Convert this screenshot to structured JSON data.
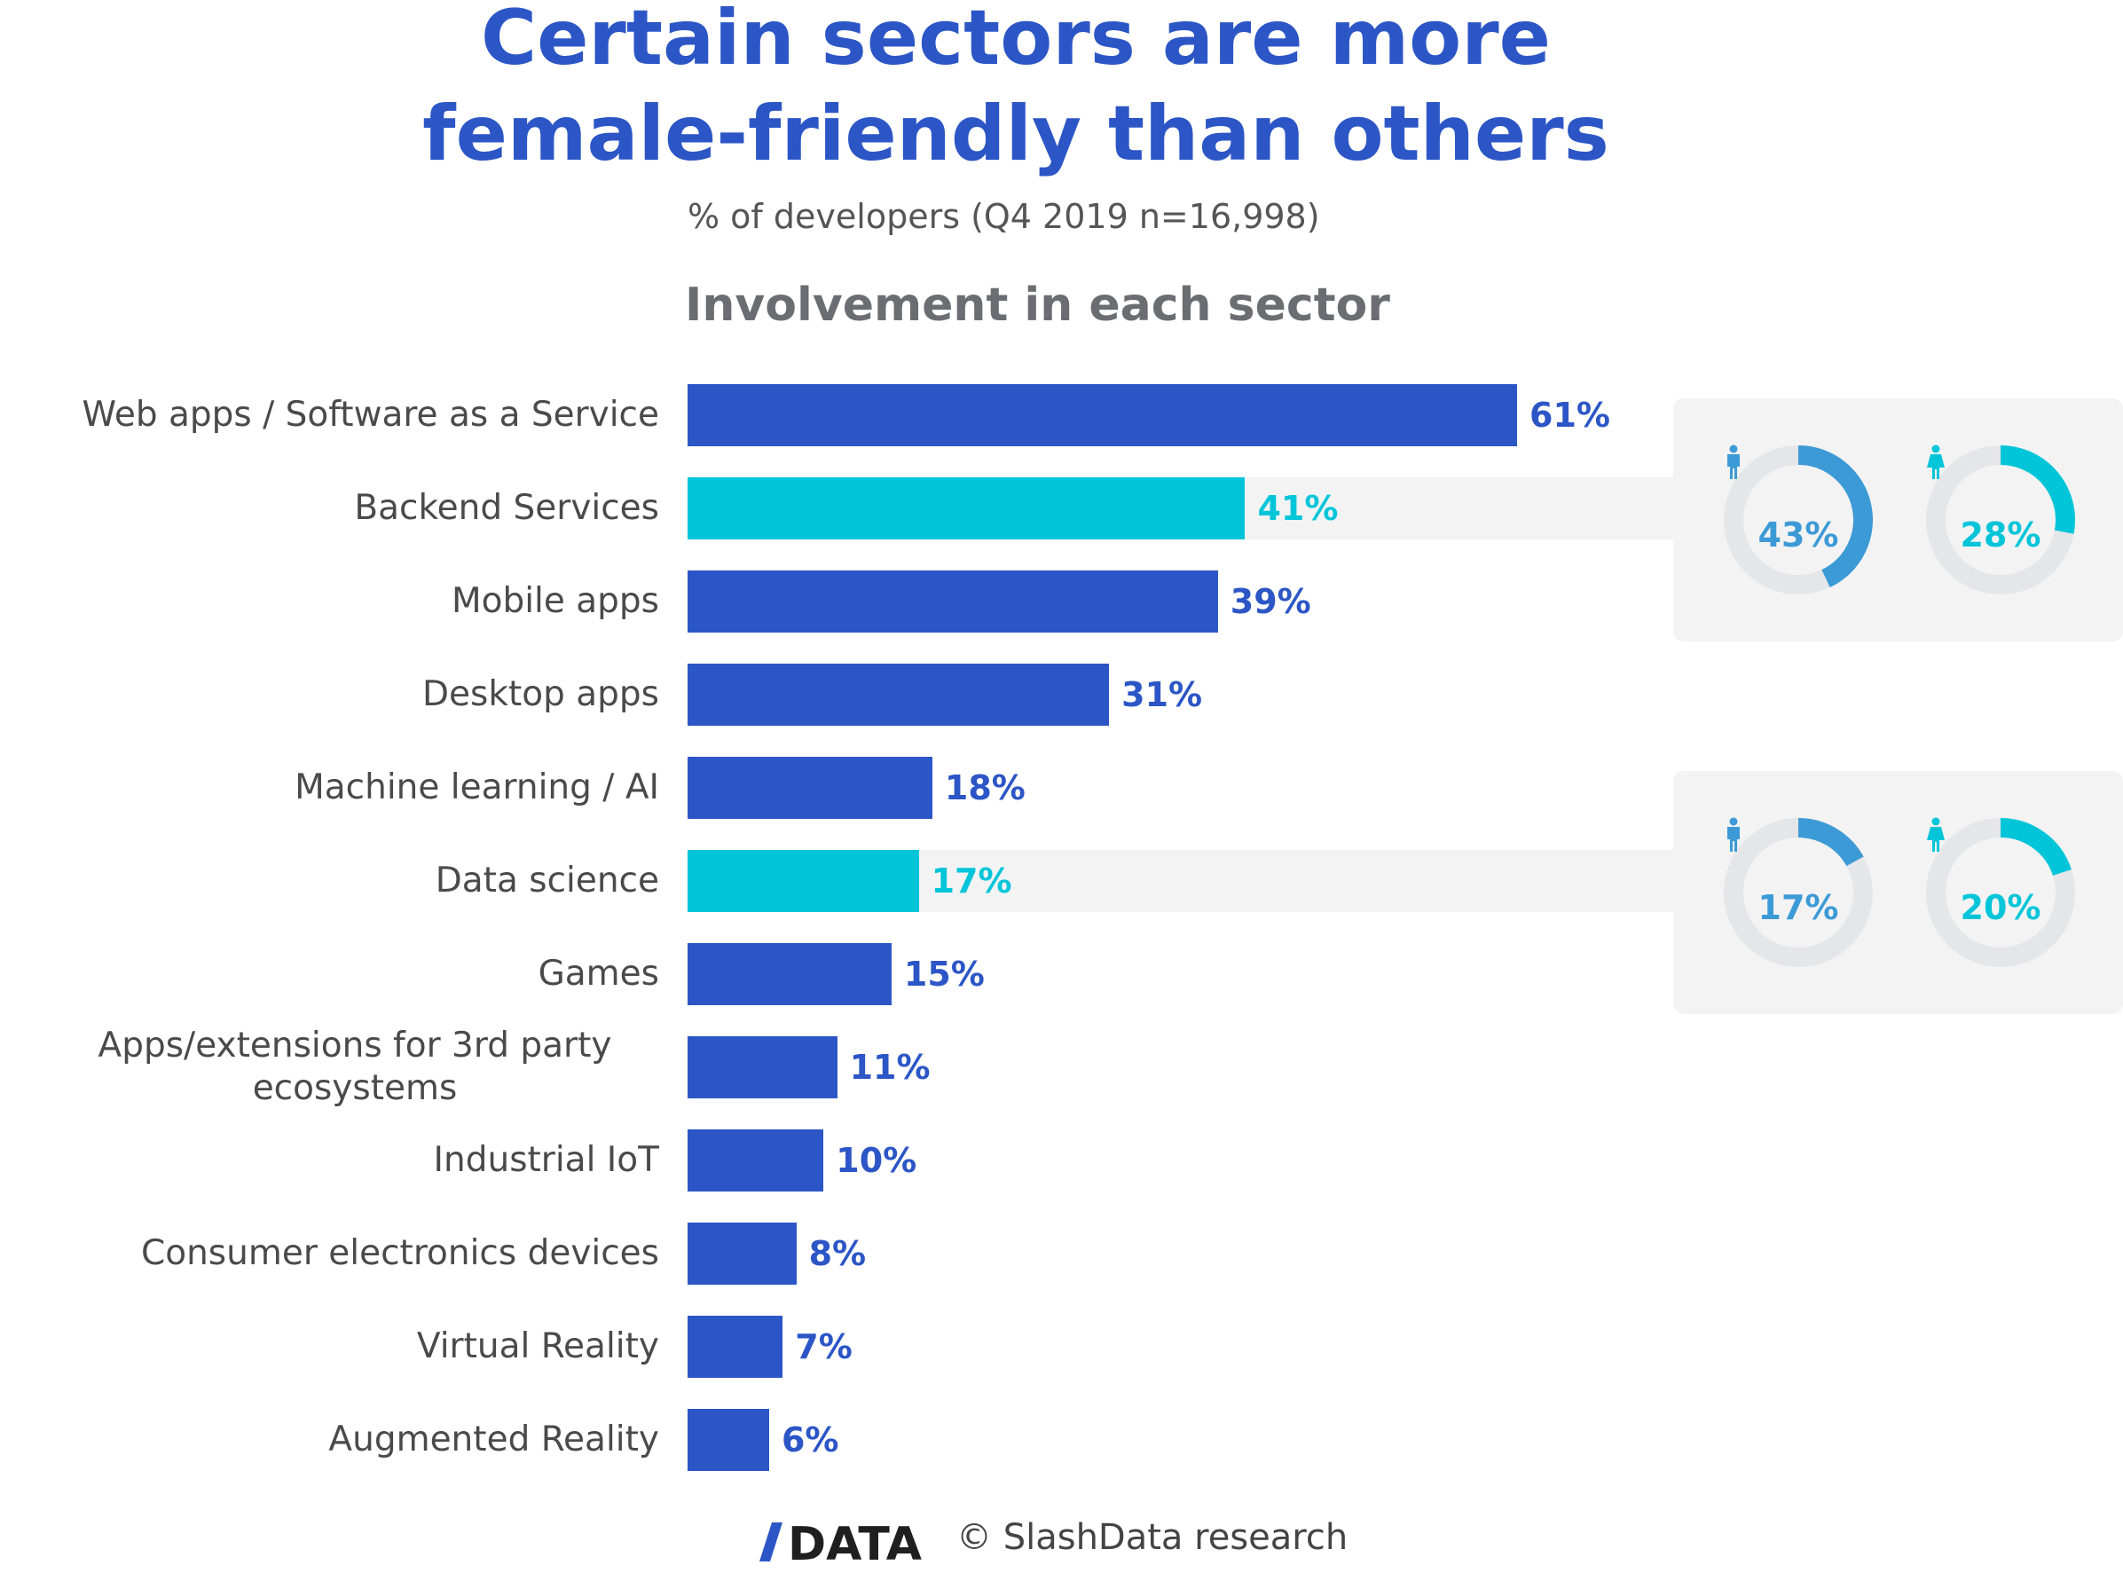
{
  "header": {
    "title_line1": "Certain sectors are more",
    "title_line2": "female-friendly than others",
    "subtitle": "% of developers (Q4 2019 n=16,998)",
    "section_title": "Involvement in each sector"
  },
  "colors": {
    "primary": "#2c56c6",
    "highlight": "#00c5d9",
    "male": "#3c9ad6",
    "female": "#00c5d9",
    "track": "#e4e6ea"
  },
  "chart_data": {
    "type": "bar",
    "orientation": "horizontal",
    "title": "Involvement in each sector",
    "categories": [
      "Web apps / Software as a Service",
      "Backend Services",
      "Mobile apps",
      "Desktop apps",
      "Machine learning / AI",
      "Data science",
      "Games",
      "Apps/extensions for 3rd party ecosystems",
      "Industrial IoT",
      "Consumer electronics devices",
      "Virtual Reality",
      "Augmented Reality"
    ],
    "values": [
      61,
      41,
      39,
      31,
      18,
      17,
      15,
      11,
      10,
      8,
      7,
      6
    ],
    "value_labels": [
      "61%",
      "41%",
      "39%",
      "31%",
      "18%",
      "17%",
      "15%",
      "11%",
      "10%",
      "8%",
      "7%",
      "6%"
    ],
    "highlighted": [
      "Backend Services",
      "Data science"
    ],
    "xlim": [
      0,
      100
    ],
    "breakdowns": [
      {
        "category": "Backend Services",
        "male": 43,
        "female": 28,
        "male_label": "43%",
        "female_label": "28%"
      },
      {
        "category": "Data science",
        "male": 17,
        "female": 20,
        "male_label": "17%",
        "female_label": "20%"
      }
    ]
  },
  "footer": {
    "logo_text": "/DATA",
    "copyright": "© SlashData research"
  }
}
